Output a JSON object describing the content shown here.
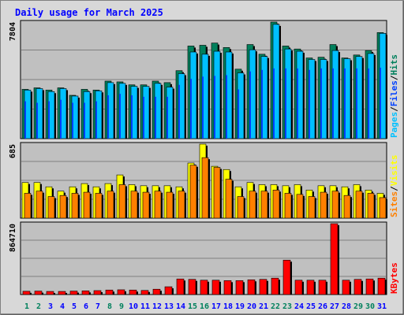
{
  "title": "Daily usage for March 2025",
  "colors": {
    "hits": "#00805c",
    "files": "#0040ff",
    "pages": "#00c0ff",
    "visits": "#ffff00",
    "sites": "#ff8000",
    "kbytes": "#ff0000",
    "title": "#0000ff",
    "weekend_day": "#00805c",
    "weekday": "#0000ff",
    "plot_bg": "#c0c0c0",
    "frame_bg": "#d8d8d8"
  },
  "chart_data": [
    {
      "type": "bar",
      "title": "Daily usage for March 2025",
      "max_label": "7804",
      "ylim": [
        0,
        7804
      ],
      "grid": true,
      "categories": [
        "1",
        "2",
        "3",
        "4",
        "5",
        "6",
        "7",
        "8",
        "9",
        "10",
        "11",
        "12",
        "13",
        "14",
        "15",
        "16",
        "17",
        "18",
        "19",
        "20",
        "21",
        "22",
        "23",
        "24",
        "25",
        "26",
        "27",
        "28",
        "29",
        "30",
        "31"
      ],
      "weekend_days": [
        "1",
        "2",
        "8",
        "9",
        "15",
        "16",
        "22",
        "23",
        "29",
        "30"
      ],
      "legend": [
        {
          "name": "Pages",
          "color": "#00c0ff"
        },
        {
          "name": "/",
          "color": "#000000"
        },
        {
          "name": "Files",
          "color": "#0040ff"
        },
        {
          "name": "/",
          "color": "#000000"
        },
        {
          "name": "Hits",
          "color": "#00805c"
        }
      ],
      "series": [
        {
          "name": "Hits",
          "values": [
            3300,
            3400,
            3250,
            3400,
            2900,
            3300,
            3250,
            3850,
            3800,
            3600,
            3600,
            3850,
            3750,
            4550,
            6200,
            6250,
            6400,
            6100,
            4650,
            6300,
            5650,
            7804,
            6200,
            6000,
            5400,
            5450,
            6300,
            5400,
            5600,
            5900,
            7100
          ]
        },
        {
          "name": "Files",
          "values": [
            2500,
            2400,
            2500,
            2600,
            2400,
            2400,
            2500,
            2900,
            3000,
            2900,
            2800,
            2800,
            2800,
            3600,
            4000,
            4150,
            4200,
            4250,
            3300,
            4500,
            4600,
            4700,
            4700,
            4700,
            4600,
            4700,
            4700,
            4700,
            4700,
            4700,
            4750
          ]
        },
        {
          "name": "Pages",
          "values": [
            3250,
            3350,
            3150,
            3350,
            2850,
            3150,
            3200,
            3750,
            3700,
            3500,
            3500,
            3700,
            3450,
            4350,
            5800,
            5650,
            5850,
            5800,
            4400,
            5950,
            5500,
            7650,
            6000,
            5850,
            5300,
            5300,
            5900,
            5350,
            5500,
            5700,
            7050
          ]
        }
      ]
    },
    {
      "type": "bar",
      "max_label": "685",
      "ylim": [
        0,
        685
      ],
      "grid": true,
      "legend": [
        {
          "name": "Sites",
          "color": "#ff8000"
        },
        {
          "name": "/",
          "color": "#000000"
        },
        {
          "name": "Visits",
          "color": "#ffff00"
        }
      ],
      "series": [
        {
          "name": "Visits",
          "values": [
            330,
            330,
            290,
            250,
            290,
            320,
            290,
            320,
            400,
            310,
            300,
            300,
            300,
            290,
            510,
            685,
            480,
            450,
            290,
            330,
            310,
            310,
            300,
            310,
            260,
            300,
            300,
            290,
            310,
            260,
            230
          ]
        },
        {
          "name": "Sites",
          "values": [
            230,
            250,
            200,
            210,
            230,
            240,
            230,
            250,
            310,
            250,
            240,
            250,
            240,
            250,
            490,
            560,
            470,
            360,
            200,
            250,
            250,
            260,
            230,
            220,
            200,
            240,
            250,
            210,
            250,
            230,
            190
          ]
        }
      ]
    },
    {
      "type": "bar",
      "max_label": "864710",
      "ylim": [
        0,
        864710
      ],
      "grid": true,
      "legend": [
        {
          "name": "KBytes",
          "color": "#ff0000"
        }
      ],
      "series": [
        {
          "name": "KBytes",
          "values": [
            40000,
            42000,
            38000,
            38000,
            42000,
            45000,
            48000,
            55000,
            58000,
            55000,
            50000,
            65000,
            95000,
            190000,
            185000,
            175000,
            175000,
            170000,
            170000,
            180000,
            185000,
            200000,
            420000,
            175000,
            175000,
            175000,
            864710,
            175000,
            185000,
            190000,
            200000
          ]
        }
      ]
    }
  ]
}
